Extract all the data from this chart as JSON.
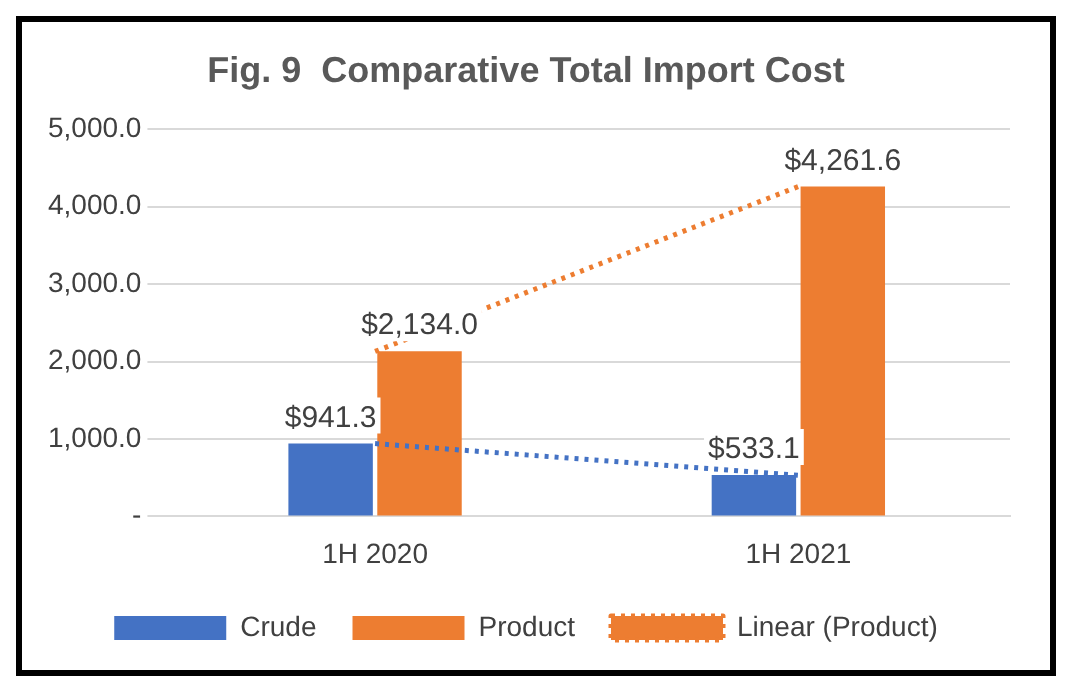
{
  "chart_data": {
    "type": "bar",
    "title": "Fig. 9  Comparative Total Import Cost",
    "categories": [
      "1H 2020",
      "1H 2021"
    ],
    "series": [
      {
        "name": "Crude",
        "color": "#4472c4",
        "values": [
          941.3,
          533.1
        ],
        "value_labels": [
          "$941.3",
          "$533.1"
        ]
      },
      {
        "name": "Product",
        "color": "#ed7d31",
        "values": [
          2134.0,
          4261.6
        ],
        "value_labels": [
          "$2,134.0",
          "$4,261.6"
        ]
      },
      {
        "type": "line",
        "color": "#4472c4",
        "values": [
          940,
          530
        ],
        "line_style": "dotted",
        "marker": "none"
      },
      {
        "type": "line",
        "name": "Linear (Product)",
        "color": "#ed7d31",
        "values": [
          2130,
          4260
        ],
        "line_style": "dotted",
        "marker": "none"
      }
    ],
    "ylim": [
      0,
      5000
    ],
    "yticks": [
      {
        "value": 0,
        "label": "-"
      },
      {
        "value": 1000,
        "label": "1,000.0"
      },
      {
        "value": 2000,
        "label": "2,000.0"
      },
      {
        "value": 3000,
        "label": "3,000.0"
      },
      {
        "value": 4000,
        "label": "4,000.0"
      },
      {
        "value": 5000,
        "label": "5,000.0"
      }
    ],
    "grid": "y",
    "legend": "bottom"
  }
}
